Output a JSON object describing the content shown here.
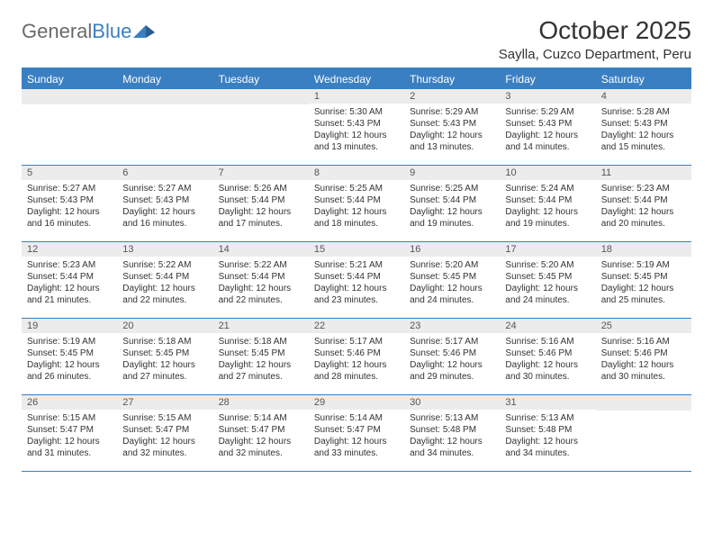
{
  "logo": {
    "text1": "General",
    "text2": "Blue"
  },
  "title": "October 2025",
  "location": "Saylla, Cuzco Department, Peru",
  "colors": {
    "header_bg": "#3a7fc2",
    "header_text": "#ffffff",
    "daynum_bg": "#ececec",
    "text": "#333333",
    "logo_gray": "#6a6a6a",
    "logo_blue": "#3a7fc2"
  },
  "weekdays": [
    "Sunday",
    "Monday",
    "Tuesday",
    "Wednesday",
    "Thursday",
    "Friday",
    "Saturday"
  ],
  "weeks": [
    [
      null,
      null,
      null,
      {
        "n": "1",
        "sr": "5:30 AM",
        "ss": "5:43 PM",
        "dl": "12 hours and 13 minutes."
      },
      {
        "n": "2",
        "sr": "5:29 AM",
        "ss": "5:43 PM",
        "dl": "12 hours and 13 minutes."
      },
      {
        "n": "3",
        "sr": "5:29 AM",
        "ss": "5:43 PM",
        "dl": "12 hours and 14 minutes."
      },
      {
        "n": "4",
        "sr": "5:28 AM",
        "ss": "5:43 PM",
        "dl": "12 hours and 15 minutes."
      }
    ],
    [
      {
        "n": "5",
        "sr": "5:27 AM",
        "ss": "5:43 PM",
        "dl": "12 hours and 16 minutes."
      },
      {
        "n": "6",
        "sr": "5:27 AM",
        "ss": "5:43 PM",
        "dl": "12 hours and 16 minutes."
      },
      {
        "n": "7",
        "sr": "5:26 AM",
        "ss": "5:44 PM",
        "dl": "12 hours and 17 minutes."
      },
      {
        "n": "8",
        "sr": "5:25 AM",
        "ss": "5:44 PM",
        "dl": "12 hours and 18 minutes."
      },
      {
        "n": "9",
        "sr": "5:25 AM",
        "ss": "5:44 PM",
        "dl": "12 hours and 19 minutes."
      },
      {
        "n": "10",
        "sr": "5:24 AM",
        "ss": "5:44 PM",
        "dl": "12 hours and 19 minutes."
      },
      {
        "n": "11",
        "sr": "5:23 AM",
        "ss": "5:44 PM",
        "dl": "12 hours and 20 minutes."
      }
    ],
    [
      {
        "n": "12",
        "sr": "5:23 AM",
        "ss": "5:44 PM",
        "dl": "12 hours and 21 minutes."
      },
      {
        "n": "13",
        "sr": "5:22 AM",
        "ss": "5:44 PM",
        "dl": "12 hours and 22 minutes."
      },
      {
        "n": "14",
        "sr": "5:22 AM",
        "ss": "5:44 PM",
        "dl": "12 hours and 22 minutes."
      },
      {
        "n": "15",
        "sr": "5:21 AM",
        "ss": "5:44 PM",
        "dl": "12 hours and 23 minutes."
      },
      {
        "n": "16",
        "sr": "5:20 AM",
        "ss": "5:45 PM",
        "dl": "12 hours and 24 minutes."
      },
      {
        "n": "17",
        "sr": "5:20 AM",
        "ss": "5:45 PM",
        "dl": "12 hours and 24 minutes."
      },
      {
        "n": "18",
        "sr": "5:19 AM",
        "ss": "5:45 PM",
        "dl": "12 hours and 25 minutes."
      }
    ],
    [
      {
        "n": "19",
        "sr": "5:19 AM",
        "ss": "5:45 PM",
        "dl": "12 hours and 26 minutes."
      },
      {
        "n": "20",
        "sr": "5:18 AM",
        "ss": "5:45 PM",
        "dl": "12 hours and 27 minutes."
      },
      {
        "n": "21",
        "sr": "5:18 AM",
        "ss": "5:45 PM",
        "dl": "12 hours and 27 minutes."
      },
      {
        "n": "22",
        "sr": "5:17 AM",
        "ss": "5:46 PM",
        "dl": "12 hours and 28 minutes."
      },
      {
        "n": "23",
        "sr": "5:17 AM",
        "ss": "5:46 PM",
        "dl": "12 hours and 29 minutes."
      },
      {
        "n": "24",
        "sr": "5:16 AM",
        "ss": "5:46 PM",
        "dl": "12 hours and 30 minutes."
      },
      {
        "n": "25",
        "sr": "5:16 AM",
        "ss": "5:46 PM",
        "dl": "12 hours and 30 minutes."
      }
    ],
    [
      {
        "n": "26",
        "sr": "5:15 AM",
        "ss": "5:47 PM",
        "dl": "12 hours and 31 minutes."
      },
      {
        "n": "27",
        "sr": "5:15 AM",
        "ss": "5:47 PM",
        "dl": "12 hours and 32 minutes."
      },
      {
        "n": "28",
        "sr": "5:14 AM",
        "ss": "5:47 PM",
        "dl": "12 hours and 32 minutes."
      },
      {
        "n": "29",
        "sr": "5:14 AM",
        "ss": "5:47 PM",
        "dl": "12 hours and 33 minutes."
      },
      {
        "n": "30",
        "sr": "5:13 AM",
        "ss": "5:48 PM",
        "dl": "12 hours and 34 minutes."
      },
      {
        "n": "31",
        "sr": "5:13 AM",
        "ss": "5:48 PM",
        "dl": "12 hours and 34 minutes."
      },
      null
    ]
  ],
  "labels": {
    "sunrise": "Sunrise: ",
    "sunset": "Sunset: ",
    "daylight": "Daylight: "
  }
}
